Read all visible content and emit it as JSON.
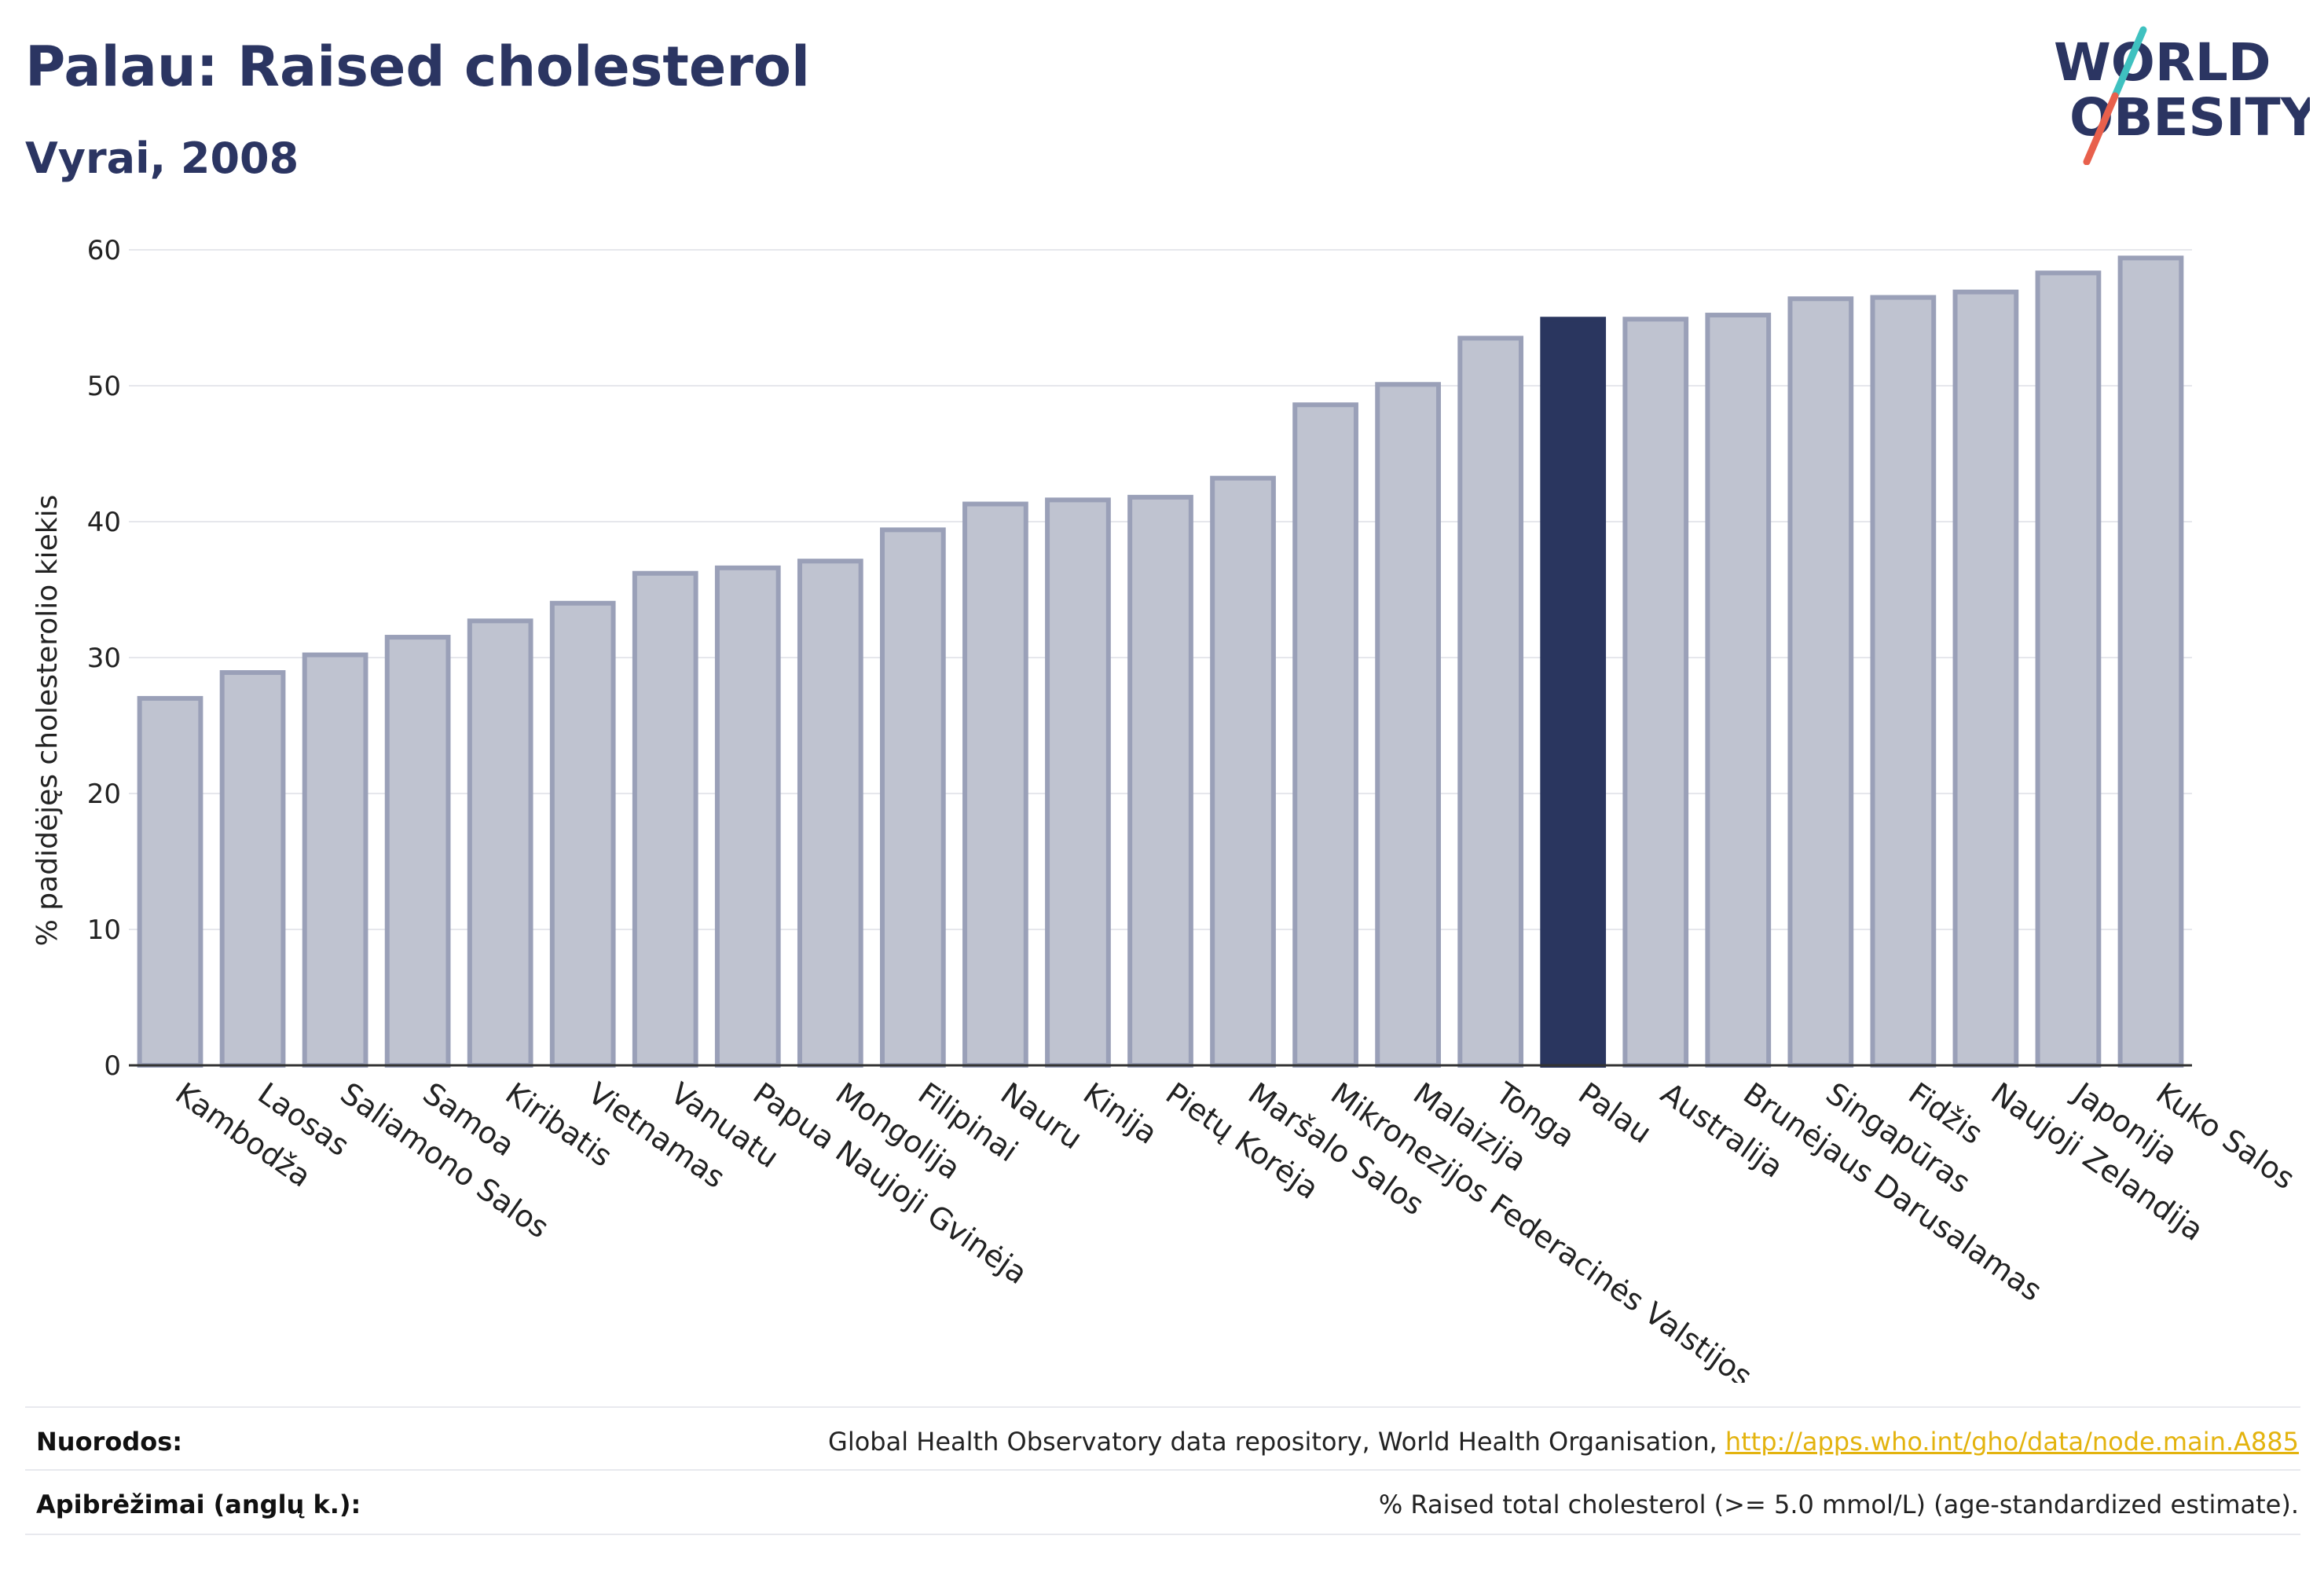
{
  "header": {
    "title": "Palau: Raised cholesterol",
    "subtitle": "Vyrai, 2008"
  },
  "logo": {
    "line1": "WORLD",
    "line2": "OBESITY"
  },
  "colors": {
    "highlight": "#2a365f",
    "bar_fill": "#bfc3d0",
    "bar_stroke": "#9aa0b8",
    "title": "#2b3562",
    "link": "#e3b30e",
    "logo_teal": "#3fc1c0",
    "logo_red": "#e8604c"
  },
  "chart_data": {
    "type": "bar",
    "title": "Palau: Raised cholesterol",
    "subtitle": "Vyrai, 2008",
    "xlabel": "",
    "ylabel": "% padidėjęs cholesterolio kiekis",
    "ylim": [
      0,
      60
    ],
    "yticks": [
      0,
      10,
      20,
      30,
      40,
      50,
      60
    ],
    "grid": true,
    "highlight_category": "Palau",
    "categories": [
      "Kambodža",
      "Laosas",
      "Saliamono Salos",
      "Samoa",
      "Kiribatis",
      "Vietnamas",
      "Vanuatu",
      "Papua Naujoji Gvinėja",
      "Mongolija",
      "Filipinai",
      "Nauru",
      "Kinija",
      "Pietų Korėja",
      "Maršalo Salos",
      "Mikronezijos Federacinės Valstijos",
      "Malaizija",
      "Tonga",
      "Palau",
      "Australija",
      "Brunėjaus Darusalamas",
      "Singapūras",
      "Fidžis",
      "Naujoji Zelandija",
      "Japonija",
      "Kuko Salos"
    ],
    "values": [
      27.0,
      28.9,
      30.2,
      31.5,
      32.7,
      34.0,
      36.2,
      36.6,
      37.1,
      39.4,
      41.3,
      41.6,
      41.8,
      43.2,
      48.6,
      50.1,
      53.5,
      54.9,
      54.9,
      55.2,
      56.4,
      56.5,
      56.9,
      58.3,
      59.4
    ]
  },
  "footer": {
    "references_label": "Nuorodos:",
    "references_text": "Global Health Observatory data repository, World Health Organisation, ",
    "references_link": "http://apps.who.int/gho/data/node.main.A885",
    "definitions_label": "Apibrėžimai (anglų k.):",
    "definitions_text": "% Raised total cholesterol (>= 5.0 mmol/L) (age-standardized estimate)."
  }
}
